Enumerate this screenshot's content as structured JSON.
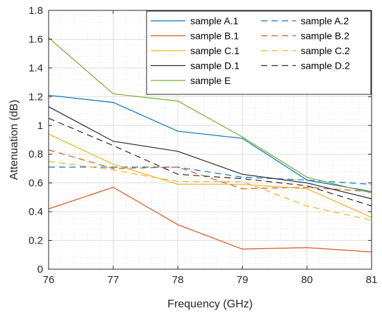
{
  "chart_data": {
    "type": "line",
    "title": "",
    "xlabel": "Frequency (GHz)",
    "ylabel": "Attenuation (dB)",
    "xlim": [
      76,
      81
    ],
    "ylim": [
      0,
      1.8
    ],
    "xticks": [
      76,
      77,
      78,
      79,
      80,
      81
    ],
    "yticks": [
      0,
      0.2,
      0.4,
      0.6,
      0.8,
      1,
      1.2,
      1.4,
      1.6,
      1.8
    ],
    "xtick_labels": [
      "76",
      "77",
      "78",
      "79",
      "80",
      "81"
    ],
    "ytick_labels": [
      "0",
      "0.2",
      "0.4",
      "0.6",
      "0.8",
      "1",
      "1.2",
      "1.4",
      "1.6",
      "1.8"
    ],
    "grid": "major and minor",
    "legend_position": "top-right",
    "x": [
      76,
      77,
      78,
      79,
      80,
      81
    ],
    "series": [
      {
        "name": "sample A.1",
        "color": "#0072BD",
        "style": "solid",
        "values": [
          1.21,
          1.16,
          0.96,
          0.91,
          0.62,
          0.54
        ]
      },
      {
        "name": "sample A.2",
        "color": "#0072BD",
        "style": "dashed",
        "values": [
          0.71,
          0.71,
          0.71,
          0.64,
          0.62,
          0.59
        ]
      },
      {
        "name": "sample B.1",
        "color": "#D95319",
        "style": "solid",
        "values": [
          0.42,
          0.57,
          0.31,
          0.14,
          0.15,
          0.12
        ]
      },
      {
        "name": "sample B.2",
        "color": "#D95319",
        "style": "dashed",
        "values": [
          0.83,
          0.7,
          0.71,
          0.56,
          0.57,
          0.54
        ]
      },
      {
        "name": "sample C.1",
        "color": "#EDB120",
        "style": "solid",
        "values": [
          0.94,
          0.73,
          0.59,
          0.59,
          0.56,
          0.36
        ]
      },
      {
        "name": "sample C.2",
        "color": "#EDB120",
        "style": "dashed",
        "values": [
          0.75,
          0.69,
          0.61,
          0.61,
          0.44,
          0.34
        ]
      },
      {
        "name": "sample D.1",
        "color": "#262626",
        "style": "solid",
        "values": [
          1.13,
          0.89,
          0.82,
          0.66,
          0.6,
          0.49
        ]
      },
      {
        "name": "sample D.2",
        "color": "#262626",
        "style": "dashed",
        "values": [
          1.05,
          0.86,
          0.66,
          0.63,
          0.58,
          0.44
        ]
      },
      {
        "name": "sample E",
        "color": "#77AC30",
        "style": "solid",
        "values": [
          1.61,
          1.22,
          1.17,
          0.92,
          0.64,
          0.53
        ]
      }
    ]
  }
}
